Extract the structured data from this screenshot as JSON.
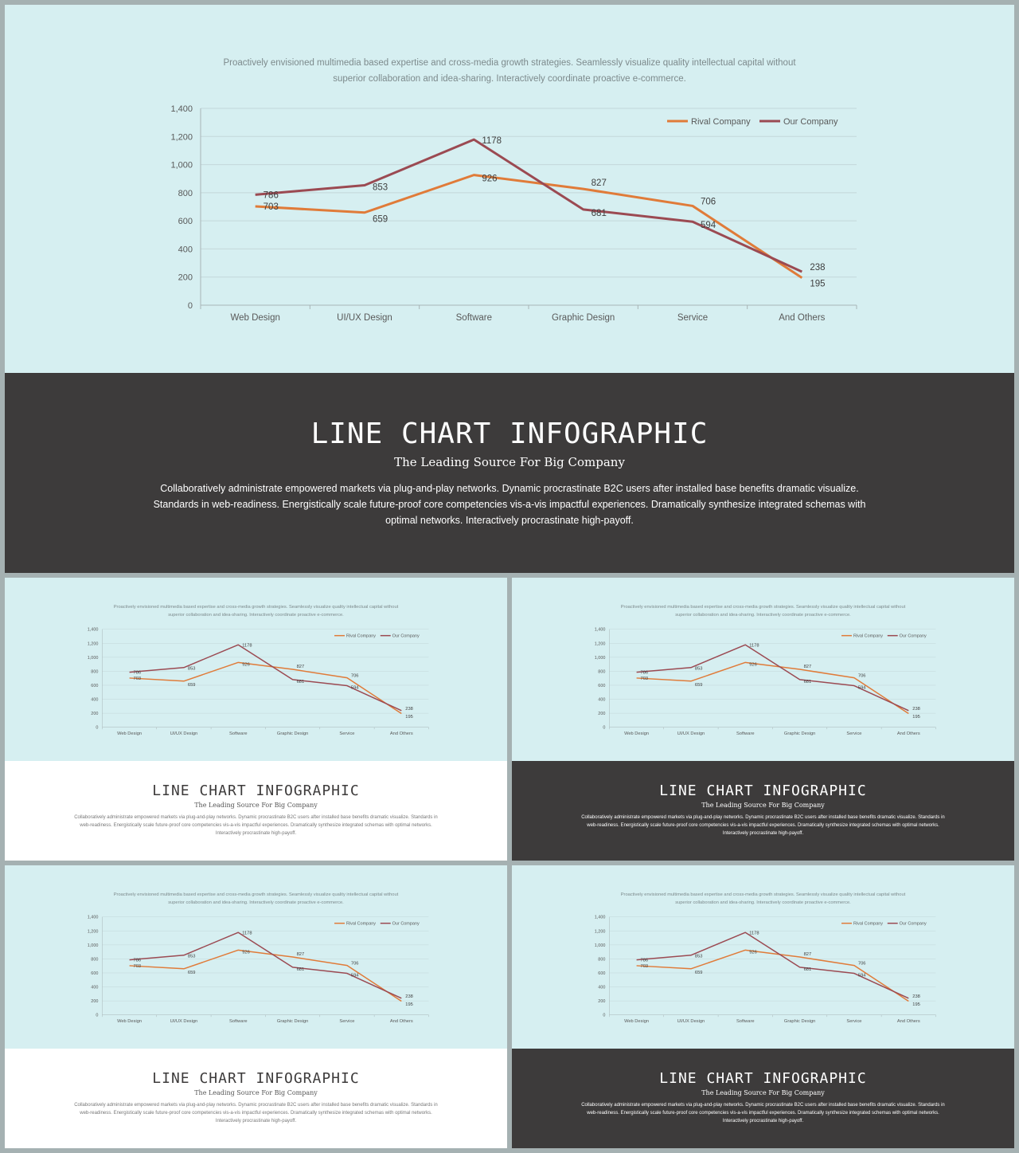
{
  "slide": {
    "chart_intro": "Proactively envisioned multimedia based expertise and cross-media growth strategies. Seamlessly visualize quality intellectual capital without superior collaboration and idea-sharing.  Interactively coordinate proactive e-commerce.",
    "title": "LINE CHART INFOGRAPHIC",
    "subtitle": "The Leading Source For Big Company",
    "body": "Collaboratively administrate empowered  markets via plug-and-play networks. Dynamic procrastinate B2C users after installed base benefits dramatic visualize. Standards in web-readiness. Energistically scale future-proof core competencies  vis-a-vis impactful experiences. Dramatically synthesize integrated schemas with optimal networks. Interactively procrastinate high-payoff."
  },
  "colors": {
    "chart_background": "#d6eff1",
    "dark_footer": "#3d3b3b",
    "light_footer": "#ffffff",
    "rival": "#e07b39",
    "ours": "#9b4a52"
  },
  "chart_data": {
    "type": "line",
    "categories": [
      "Web Design",
      "UI/UX Design",
      "Software",
      "Graphic Design",
      "Service",
      "And Others"
    ],
    "series": [
      {
        "name": "Rival Company",
        "values": [
          703,
          659,
          926,
          827,
          706,
          195
        ]
      },
      {
        "name": "Our Company",
        "values": [
          786,
          853,
          1178,
          681,
          594,
          238
        ]
      }
    ],
    "yticks": [
      "0",
      "200",
      "400",
      "600",
      "800",
      "1,000",
      "1,200",
      "1,400"
    ],
    "ylim": [
      0,
      1400
    ],
    "grid": true,
    "legend_position": "top-right",
    "data_labels": true
  },
  "thumbnails": [
    {
      "footer_style": "light"
    },
    {
      "footer_style": "dark"
    },
    {
      "footer_style": "light"
    },
    {
      "footer_style": "dark"
    }
  ]
}
